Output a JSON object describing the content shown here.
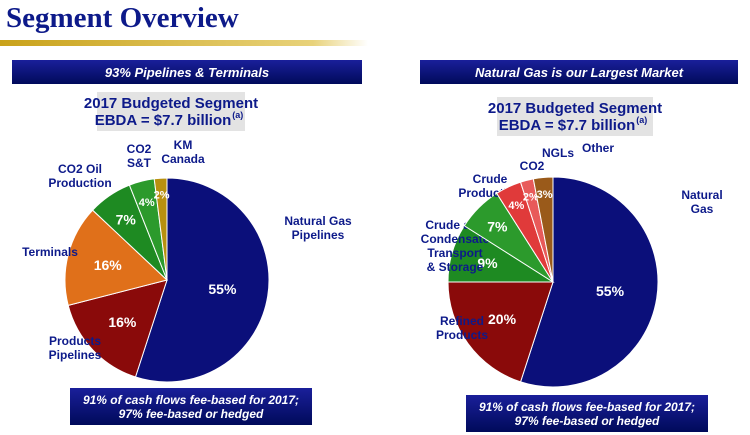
{
  "header": {
    "title": "Segment Overview"
  },
  "chart_data": [
    {
      "type": "pie",
      "title": "93% Pipelines & Terminals",
      "subtitle": [
        "2017 Budgeted Segment",
        "EBDA = $7.7 billion"
      ],
      "subtitle_note": "(a)",
      "categories": [
        "Natural Gas\nPipelines",
        "Products\nPipelines",
        "Terminals",
        "CO2 Oil\nProduction",
        "CO2\nS&T",
        "KM\nCanada"
      ],
      "values": [
        55,
        16,
        16,
        7,
        4,
        2
      ],
      "value_labels": [
        "55%",
        "16%",
        "16%",
        "7%",
        "4%",
        "2%"
      ],
      "colors": [
        "#0b0f7a",
        "#8a0a0a",
        "#e0701a",
        "#1e8a22",
        "#2c9a2c",
        "#b89010"
      ],
      "annotation": "91% of cash flows fee-based for 2017;\n97% fee-based or hedged"
    },
    {
      "type": "pie",
      "title": "Natural Gas is our Largest Market",
      "subtitle": [
        "2017 Budgeted Segment",
        "EBDA = $7.7 billion"
      ],
      "subtitle_note": "(a)",
      "categories": [
        "Natural\nGas",
        "Refined\nProducts",
        "Crude and\nCondensate\nTransport\n& Storage",
        "Crude\nProduction",
        "CO2",
        "NGLs",
        "Other"
      ],
      "values": [
        55,
        20,
        9,
        7,
        4,
        2,
        3
      ],
      "value_labels": [
        "55%",
        "20%",
        "9%",
        "7%",
        "4%",
        "2%",
        "3%"
      ],
      "colors": [
        "#0b0f7a",
        "#8a0a0a",
        "#1e8a22",
        "#2c9a2c",
        "#e03a3a",
        "#e85a5a",
        "#9a5a1a"
      ],
      "annotation": "91% of cash flows fee-based for 2017;\n97% fee-based or hedged"
    }
  ]
}
